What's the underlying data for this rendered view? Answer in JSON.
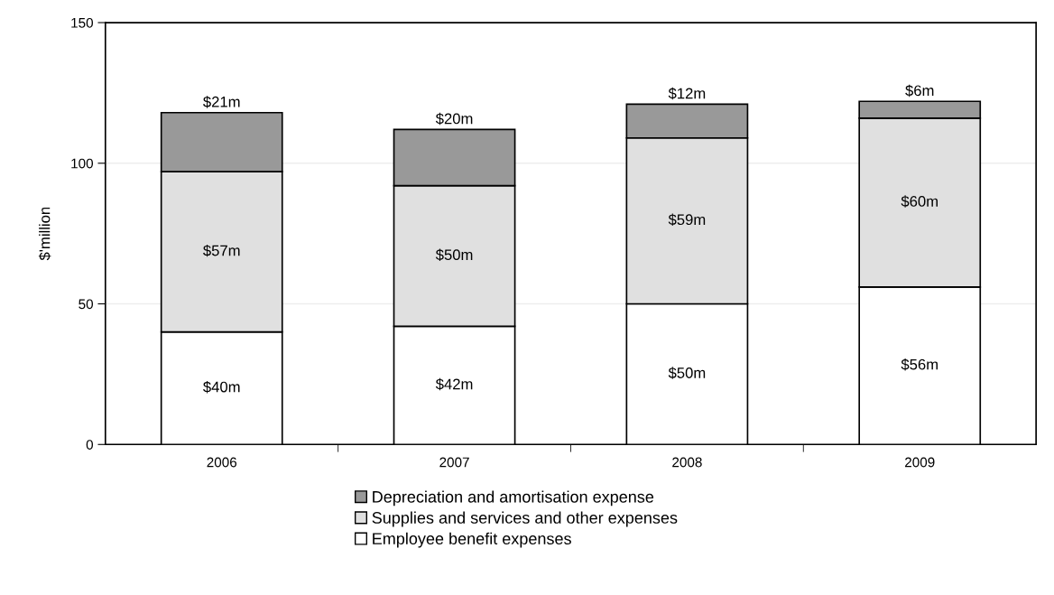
{
  "chart_data": {
    "type": "bar",
    "stacked": true,
    "ylabel": "$'million",
    "categories": [
      "2006",
      "2007",
      "2008",
      "2009"
    ],
    "series": [
      {
        "name": "Employee benefit expenses",
        "color": "#ffffff",
        "values": [
          40,
          42,
          50,
          56
        ],
        "value_labels": [
          "$40m",
          "$42m",
          "$50m",
          "$56m"
        ]
      },
      {
        "name": "Supplies and services and other expenses",
        "color": "#e0e0e0",
        "values": [
          57,
          50,
          59,
          60
        ],
        "value_labels": [
          "$57m",
          "$50m",
          "$59m",
          "$60m"
        ]
      },
      {
        "name": "Depreciation and amortisation expense",
        "color": "#999999",
        "values": [
          21,
          20,
          12,
          6
        ],
        "value_labels": [
          "$21m",
          "$20m",
          "$12m",
          "$6m"
        ]
      }
    ],
    "ylim": [
      0,
      150
    ],
    "yticks": [
      0,
      50,
      100,
      150
    ],
    "grid": "y",
    "legend": "bottom"
  }
}
